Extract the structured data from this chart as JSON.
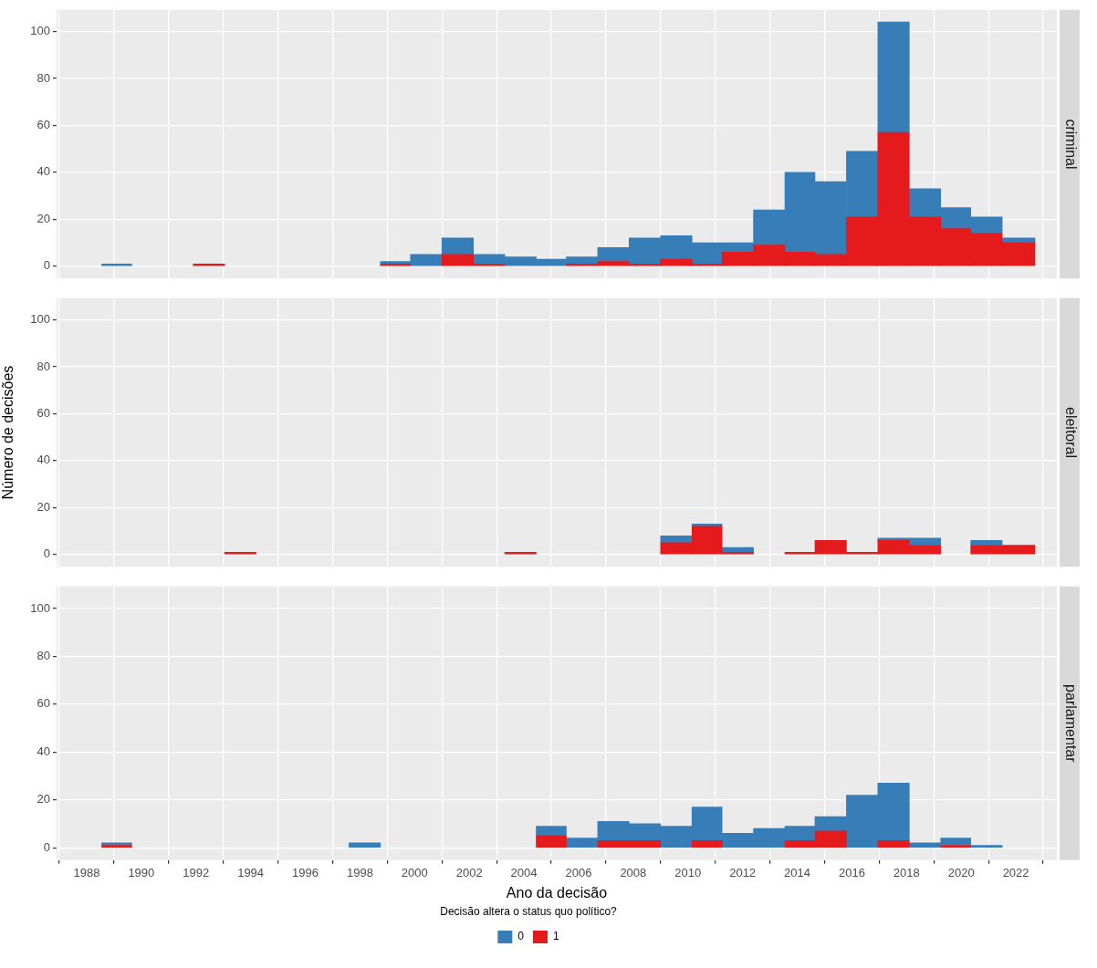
{
  "chart_data": [
    {
      "type": "bar",
      "title": "criminal",
      "x": [
        1989.1,
        1990.2,
        1991.3,
        1992.5,
        1993.6,
        1994.8,
        1995.9,
        1997.0,
        1998.2,
        1999.3,
        2000.4,
        2001.6,
        2002.7,
        2003.9,
        2005.0,
        2006.1,
        2007.3,
        2008.4,
        2009.6,
        2010.7,
        2011.8,
        2013.0,
        2014.1,
        2015.2,
        2016.4,
        2017.5,
        2018.7,
        2019.8,
        2020.9,
        2022.1
      ],
      "series": [
        {
          "color": "#e41a1c",
          "values": [
            0,
            0,
            0,
            1,
            0,
            0,
            0,
            0,
            0,
            1,
            0,
            5,
            1,
            0,
            0,
            1,
            2,
            1,
            3,
            1,
            6,
            9,
            6,
            5,
            21,
            57,
            21,
            16,
            14,
            10
          ]
        },
        {
          "color": "#377eb8",
          "values": [
            1,
            0,
            0,
            0,
            0,
            0,
            0,
            0,
            0,
            1,
            5,
            7,
            4,
            4,
            3,
            3,
            6,
            11,
            10,
            9,
            4,
            15,
            34,
            31,
            28,
            47,
            12,
            9,
            7,
            2
          ]
        }
      ],
      "stacked": true,
      "xlim": [
        1986.9,
        2023.5
      ],
      "xticks": [
        1988,
        1990,
        1992,
        1994,
        1996,
        1998,
        2000,
        2002,
        2004,
        2006,
        2008,
        2010,
        2012,
        2014,
        2016,
        2018,
        2020,
        2022
      ],
      "ylim": [
        -5.2,
        109.2
      ],
      "yticks": [
        0,
        20,
        40,
        60,
        80,
        100
      ],
      "grid": true,
      "tick_labels": "y"
    },
    {
      "type": "bar",
      "title": "eleitoral",
      "ylabel": "Número de decisões",
      "x": [
        1989.1,
        1990.2,
        1991.3,
        1992.5,
        1993.6,
        1994.8,
        1995.9,
        1997.0,
        1998.2,
        1999.3,
        2000.4,
        2001.6,
        2002.7,
        2003.9,
        2005.0,
        2006.1,
        2007.3,
        2008.4,
        2009.6,
        2010.7,
        2011.8,
        2013.0,
        2014.1,
        2015.2,
        2016.4,
        2017.5,
        2018.7,
        2019.8,
        2020.9,
        2022.1
      ],
      "series": [
        {
          "color": "#e41a1c",
          "values": [
            0,
            0,
            0,
            0,
            1,
            0,
            0,
            0,
            0,
            0,
            0,
            0,
            0,
            1,
            0,
            0,
            0,
            0,
            5,
            12,
            1,
            0,
            1,
            6,
            1,
            6,
            4,
            0,
            4,
            4
          ]
        },
        {
          "color": "#377eb8",
          "values": [
            0,
            0,
            0,
            0,
            0,
            0,
            0,
            0,
            0,
            0,
            0,
            0,
            0,
            0,
            0,
            0,
            0,
            0,
            3,
            1,
            2,
            0,
            0,
            0,
            0,
            1,
            3,
            0,
            2,
            0
          ]
        }
      ],
      "stacked": true,
      "xlim": [
        1986.9,
        2023.5
      ],
      "xticks": [
        1988,
        1990,
        1992,
        1994,
        1996,
        1998,
        2000,
        2002,
        2004,
        2006,
        2008,
        2010,
        2012,
        2014,
        2016,
        2018,
        2020,
        2022
      ],
      "ylim": [
        -5.2,
        109.2
      ],
      "yticks": [
        0,
        20,
        40,
        60,
        80,
        100
      ],
      "grid": true,
      "tick_labels": "y"
    },
    {
      "type": "bar",
      "title": "parlamentar",
      "xlabel": "Ano da decisão",
      "legend_title": "Decisão altera o status quo político?",
      "legend": "bottom",
      "x": [
        1989.1,
        1990.2,
        1991.3,
        1992.5,
        1993.6,
        1994.8,
        1995.9,
        1997.0,
        1998.2,
        1999.3,
        2000.4,
        2001.6,
        2002.7,
        2003.9,
        2005.0,
        2006.1,
        2007.3,
        2008.4,
        2009.6,
        2010.7,
        2011.8,
        2013.0,
        2014.1,
        2015.2,
        2016.4,
        2017.5,
        2018.7,
        2019.8,
        2020.9,
        2022.1
      ],
      "series": [
        {
          "name": "1",
          "color": "#e41a1c",
          "values": [
            1,
            0,
            0,
            0,
            0,
            0,
            0,
            0,
            0,
            0,
            0,
            0,
            0,
            0,
            5,
            0,
            3,
            3,
            0,
            3,
            0,
            0,
            3,
            7,
            0,
            3,
            0,
            1,
            0,
            0
          ]
        },
        {
          "name": "0",
          "color": "#377eb8",
          "values": [
            1,
            0,
            0,
            0,
            0,
            0,
            0,
            0,
            2,
            0,
            0,
            0,
            0,
            0,
            4,
            4,
            8,
            7,
            9,
            14,
            6,
            8,
            6,
            6,
            22,
            24,
            2,
            3,
            1,
            0
          ]
        }
      ],
      "stacked": true,
      "xlim": [
        1986.9,
        2023.5
      ],
      "xticks": [
        1988,
        1990,
        1992,
        1994,
        1996,
        1998,
        2000,
        2002,
        2004,
        2006,
        2008,
        2010,
        2012,
        2014,
        2016,
        2018,
        2020,
        2022
      ],
      "ylim": [
        -5.2,
        109.2
      ],
      "yticks": [
        0,
        20,
        40,
        60,
        80,
        100
      ],
      "grid": true
    }
  ]
}
